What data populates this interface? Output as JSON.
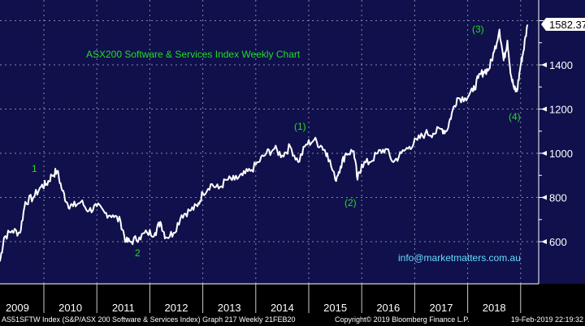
{
  "chart_data": {
    "type": "line",
    "title": "ASX200 Software & Services Index Weekly Chart",
    "xlabel": "",
    "ylabel": "",
    "ylim": [
      440,
      1700
    ],
    "yticks": [
      600,
      800,
      1000,
      1200,
      1400
    ],
    "xticks": [
      "2009",
      "2010",
      "2011",
      "2012",
      "2013",
      "2014",
      "2015",
      "2016",
      "2017",
      "2018"
    ],
    "grid": true,
    "last_price": "1582.37",
    "series": [
      {
        "name": "AS51SFTW Index",
        "color": "#ffffff",
        "x": [
          2009.17,
          2009.25,
          2009.4,
          2009.55,
          2009.65,
          2009.8,
          2009.95,
          2010.05,
          2010.15,
          2010.25,
          2010.35,
          2010.45,
          2010.55,
          2010.7,
          2010.85,
          2011.0,
          2011.15,
          2011.3,
          2011.45,
          2011.55,
          2011.65,
          2011.8,
          2011.95,
          2012.1,
          2012.2,
          2012.3,
          2012.45,
          2012.6,
          2012.75,
          2012.9,
          2013.0,
          2013.15,
          2013.3,
          2013.45,
          2013.6,
          2013.75,
          2013.9,
          2014.05,
          2014.2,
          2014.35,
          2014.5,
          2014.65,
          2014.8,
          2014.95,
          2015.1,
          2015.25,
          2015.35,
          2015.5,
          2015.6,
          2015.7,
          2015.85,
          2015.92,
          2016.0,
          2016.15,
          2016.3,
          2016.45,
          2016.6,
          2016.75,
          2016.9,
          2017.05,
          2017.2,
          2017.35,
          2017.5,
          2017.6,
          2017.7,
          2017.8,
          2017.95,
          2018.1,
          2018.2,
          2018.3,
          2018.4,
          2018.5,
          2018.6,
          2018.68,
          2018.75,
          2018.82,
          2018.88,
          2018.93,
          2019.0,
          2019.05,
          2019.13
        ],
        "values": [
          510,
          620,
          650,
          640,
          780,
          800,
          850,
          860,
          900,
          920,
          830,
          770,
          760,
          780,
          740,
          760,
          730,
          720,
          690,
          600,
          600,
          620,
          640,
          640,
          690,
          620,
          640,
          720,
          740,
          760,
          820,
          860,
          840,
          880,
          880,
          900,
          920,
          960,
          1000,
          1020,
          990,
          1030,
          960,
          1040,
          1060,
          1030,
          1000,
          880,
          940,
          1000,
          1010,
          880,
          950,
          960,
          1000,
          1020,
          960,
          1000,
          1030,
          1060,
          1090,
          1090,
          1110,
          1100,
          1180,
          1250,
          1250,
          1280,
          1340,
          1370,
          1380,
          1460,
          1560,
          1420,
          1510,
          1350,
          1290,
          1280,
          1400,
          1460,
          1582
        ]
      }
    ],
    "annotations": [
      "1",
      "2",
      "(1)",
      "(2)",
      "(3)",
      "(4)"
    ],
    "watermark": "info@marketmatters.com.au"
  },
  "footer": {
    "left": "AS51SFTW Index (S&P/ASX 200 Software & Services Index) Graph 217  Weekly 21FEB20",
    "center": "Copyright© 2019 Bloomberg Finance L.P.",
    "right": "19-Feb-2019 22:19:32"
  },
  "colors": {
    "bg": "#10104c",
    "annot": "#22dd22",
    "line": "#ffffff",
    "watermark": "#66ddff"
  }
}
